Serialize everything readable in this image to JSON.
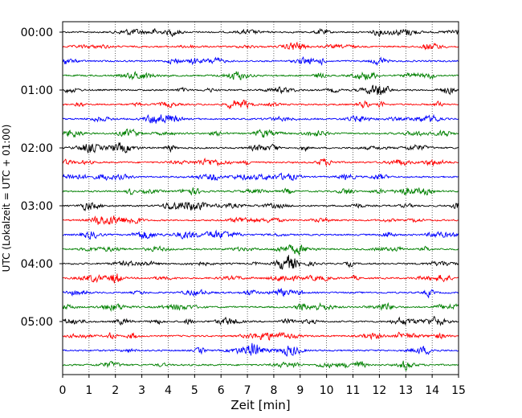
{
  "chart_data": {
    "type": "line",
    "subtype": "helicorder",
    "xlabel": "Zeit  [min]",
    "ylabel": "UTC (Lokalzeit = UTC + 01:00)",
    "xlim": [
      0,
      15
    ],
    "x_ticks": [
      "0",
      "1",
      "2",
      "3",
      "4",
      "5",
      "6",
      "7",
      "8",
      "9",
      "10",
      "11",
      "12",
      "13",
      "14",
      "15"
    ],
    "y_ticks": [
      "00:00",
      "01:00",
      "02:00",
      "03:00",
      "04:00",
      "05:00"
    ],
    "grid": "vertical dotted",
    "trace_count": 24,
    "trace_interval_min": 15,
    "trace_colors": [
      "#000000",
      "#ff0000",
      "#0000ff",
      "#008000"
    ]
  }
}
